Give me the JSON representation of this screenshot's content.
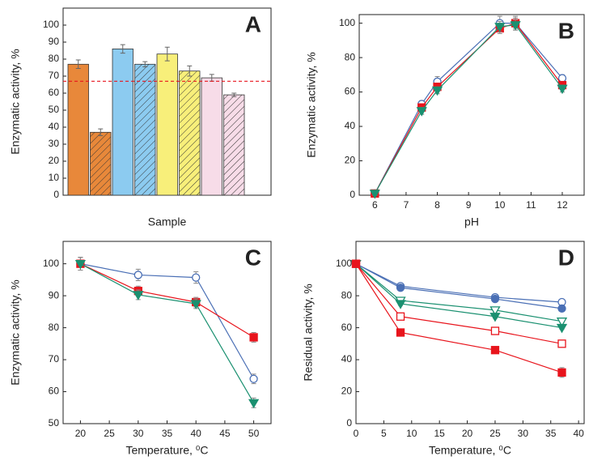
{
  "chart_data": [
    {
      "type": "bar",
      "panel_label": "A",
      "x_label": "Sample",
      "y_label": "Enzymatic activity, %",
      "categories": [
        null,
        null,
        null,
        null,
        null,
        null,
        null,
        null
      ],
      "values": [
        77,
        37,
        86,
        77,
        83,
        73,
        69,
        59
      ],
      "errors": [
        2.5,
        2,
        2.5,
        1.5,
        4,
        3,
        2,
        1
      ],
      "colors": [
        "#e8883a",
        "#e8883a",
        "#8ccbf0",
        "#8ccbf0",
        "#f8ef7a",
        "#f8ef7a",
        "#f7dce8",
        "#f7dce8"
      ],
      "hatched": [
        false,
        true,
        false,
        true,
        false,
        true,
        false,
        true
      ],
      "reference_line": 67,
      "reference_color": "#e8141c",
      "ylim": [
        0,
        110
      ],
      "yticks": [
        0,
        10,
        20,
        30,
        40,
        50,
        60,
        70,
        80,
        90,
        100
      ]
    },
    {
      "type": "line",
      "panel_label": "B",
      "x_label": "pH",
      "y_label": "Enzymatic activity, %",
      "x": [
        6,
        7.5,
        8,
        10,
        10.5,
        12
      ],
      "xlim": [
        5.5,
        12.7
      ],
      "xticks": [
        6,
        7,
        8,
        9,
        10,
        11,
        12
      ],
      "ylim": [
        0,
        105
      ],
      "yticks": [
        0,
        20,
        40,
        60,
        80,
        100
      ],
      "series": [
        {
          "color": "#4a6fb5",
          "marker": "circle",
          "filled": false,
          "values": [
            1,
            53,
            66,
            100,
            100,
            68
          ],
          "errors": [
            1,
            2,
            3,
            4,
            3,
            2
          ]
        },
        {
          "color": "#e8141c",
          "marker": "square",
          "filled": true,
          "values": [
            1,
            51,
            63,
            97,
            100,
            64
          ],
          "errors": [
            1,
            2,
            2,
            3,
            4,
            2
          ]
        },
        {
          "color": "#1a9070",
          "marker": "triangle-down",
          "filled": true,
          "values": [
            1,
            49,
            61,
            98,
            99,
            62
          ],
          "errors": [
            1,
            2,
            2,
            3,
            3,
            2
          ]
        }
      ]
    },
    {
      "type": "line",
      "panel_label": "C",
      "x_label": "Temperature, ⁰C",
      "y_label": "Enzymatic activity, %",
      "x": [
        20,
        30,
        40,
        50
      ],
      "xlim": [
        17,
        53
      ],
      "xticks": [
        20,
        25,
        30,
        35,
        40,
        45,
        50
      ],
      "ylim": [
        50,
        107
      ],
      "yticks": [
        50,
        60,
        70,
        80,
        90,
        100
      ],
      "series": [
        {
          "color": "#4a6fb5",
          "marker": "circle",
          "filled": false,
          "values": [
            100,
            96.5,
            95.7,
            64
          ],
          "errors": [
            2,
            1.8,
            1.8,
            1.5
          ]
        },
        {
          "color": "#e8141c",
          "marker": "square",
          "filled": true,
          "values": [
            100,
            91.5,
            88,
            77
          ],
          "errors": [
            2,
            1.5,
            1.5,
            1.5
          ]
        },
        {
          "color": "#1a9070",
          "marker": "triangle-down",
          "filled": true,
          "values": [
            100,
            90.3,
            87.5,
            56.5
          ],
          "errors": [
            2,
            1.5,
            1.5,
            1.5
          ]
        }
      ]
    },
    {
      "type": "line",
      "panel_label": "D",
      "x_label": "Temperature, ⁰C",
      "y_label": "Residual activity, %",
      "x": [
        0,
        8,
        25,
        37
      ],
      "xlim": [
        0,
        41
      ],
      "xticks": [
        0,
        5,
        10,
        15,
        20,
        25,
        30,
        35,
        40
      ],
      "ylim": [
        0,
        114
      ],
      "yticks": [
        0,
        20,
        40,
        60,
        80,
        100
      ],
      "series": [
        {
          "color": "#4a6fb5",
          "marker": "circle",
          "filled": false,
          "values": [
            100,
            86,
            79,
            76
          ],
          "errors": [
            1,
            1,
            1,
            1
          ]
        },
        {
          "color": "#4a6fb5",
          "marker": "circle",
          "filled": true,
          "values": [
            100,
            85,
            78,
            72
          ],
          "errors": [
            1,
            1,
            1,
            1
          ]
        },
        {
          "color": "#1a9070",
          "marker": "triangle-down",
          "filled": false,
          "values": [
            100,
            77,
            71,
            64
          ],
          "errors": [
            1,
            1,
            1,
            1
          ]
        },
        {
          "color": "#1a9070",
          "marker": "triangle-down",
          "filled": true,
          "values": [
            100,
            75,
            67,
            60
          ],
          "errors": [
            1,
            1,
            1,
            1
          ]
        },
        {
          "color": "#e8141c",
          "marker": "square",
          "filled": false,
          "values": [
            100,
            67,
            58,
            50
          ],
          "errors": [
            1,
            1,
            1,
            1
          ]
        },
        {
          "color": "#e8141c",
          "marker": "square",
          "filled": true,
          "values": [
            100,
            57,
            46,
            32
          ],
          "errors": [
            1,
            2,
            2,
            3
          ]
        }
      ]
    }
  ]
}
